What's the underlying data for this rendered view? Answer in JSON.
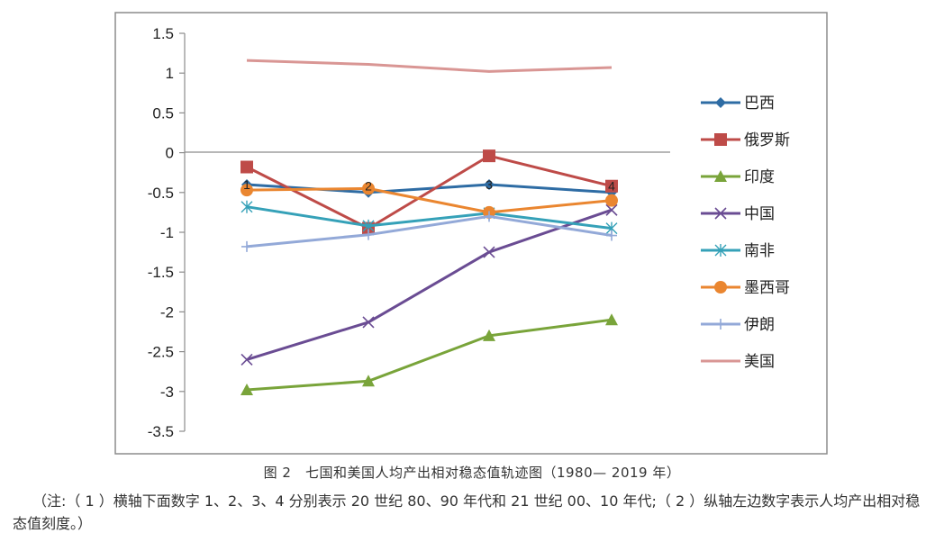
{
  "chart_data": {
    "type": "line",
    "categories": [
      "1",
      "2",
      "3",
      "4"
    ],
    "point_labels": [
      "1",
      "2",
      "3",
      "4"
    ],
    "ylim": [
      -3.5,
      1.5
    ],
    "yticks": [
      "1.5",
      "1",
      "0.5",
      "0",
      "-0.5",
      "-1",
      "-1.5",
      "-2",
      "-2.5",
      "-3",
      "-3.5"
    ],
    "ytick_values": [
      1.5,
      1,
      0.5,
      0,
      -0.5,
      -1,
      -1.5,
      -2,
      -2.5,
      -3,
      -3.5
    ],
    "grid": false,
    "legend_position": "right",
    "series": [
      {
        "name": "巴西",
        "color": "#2e6ca4",
        "marker": "diamond",
        "values": [
          -0.4,
          -0.5,
          -0.4,
          -0.5
        ]
      },
      {
        "name": "俄罗斯",
        "color": "#be4b48",
        "marker": "square",
        "values": [
          -0.18,
          -0.95,
          -0.04,
          -0.42
        ]
      },
      {
        "name": "印度",
        "color": "#79a43a",
        "marker": "triangle",
        "values": [
          -2.98,
          -2.87,
          -2.3,
          -2.1
        ]
      },
      {
        "name": "中国",
        "color": "#6a4c93",
        "marker": "x",
        "values": [
          -2.6,
          -2.13,
          -1.25,
          -0.72
        ]
      },
      {
        "name": "南非",
        "color": "#35a1b8",
        "marker": "asterisk",
        "values": [
          -0.68,
          -0.92,
          -0.76,
          -0.95
        ]
      },
      {
        "name": "墨西哥",
        "color": "#ea8630",
        "marker": "circle",
        "values": [
          -0.47,
          -0.45,
          -0.75,
          -0.6
        ]
      },
      {
        "name": "伊朗",
        "color": "#93a9d8",
        "marker": "plus",
        "values": [
          -1.18,
          -1.03,
          -0.8,
          -1.04
        ]
      },
      {
        "name": "美国",
        "color": "#d99694",
        "marker": "none",
        "values": [
          1.16,
          1.11,
          1.02,
          1.07
        ]
      }
    ]
  },
  "caption": "图 2　七国和美国人均产出相对稳态值轨迹图（1980— 2019 年）",
  "note": "（注:（ 1 ）横轴下面数字 1、2、3、4 分别表示 20 世纪 80、90 年代和 21 世纪 00、10 年代;（ 2 ）纵轴左边数字表示人均产出相对稳态值刻度。）"
}
